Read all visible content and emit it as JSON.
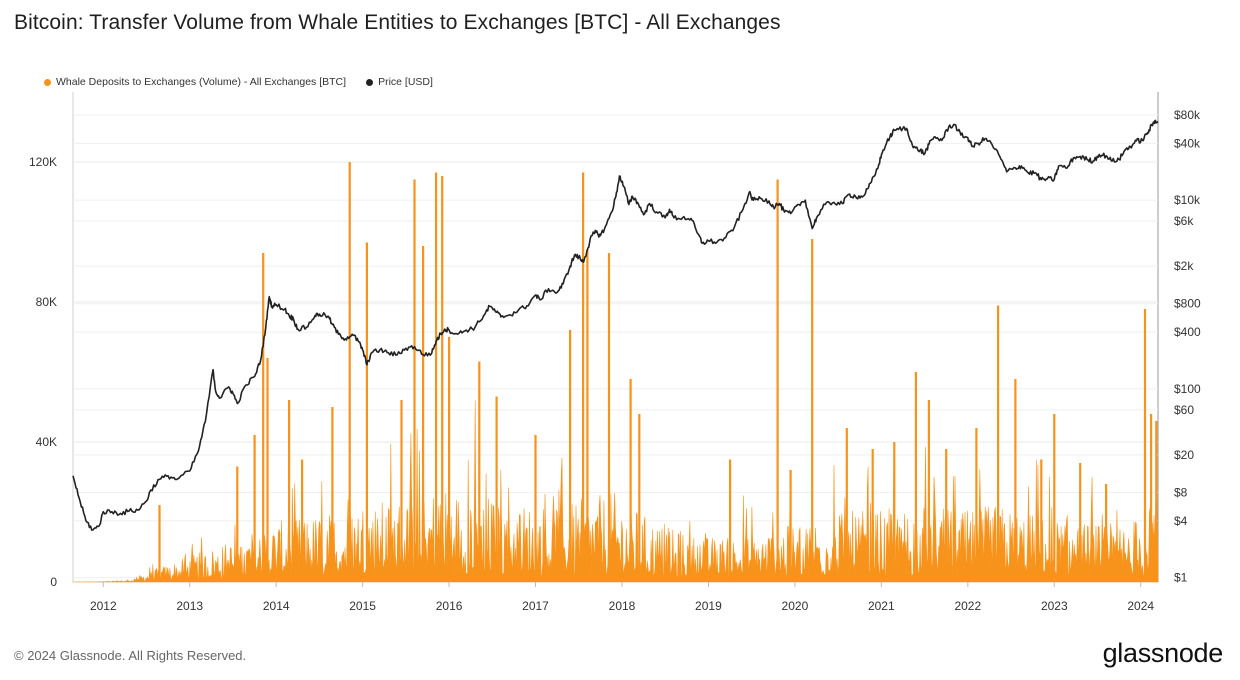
{
  "chart_data": {
    "type": "area",
    "title": "Bitcoin: Transfer Volume from Whale Entities to Exchanges [BTC] - All Exchanges",
    "legend": [
      {
        "name": "Whale Deposits to Exchanges (Volume) - All Exchanges [BTC]",
        "color": "#f7931a"
      },
      {
        "name": "Price [USD]",
        "color": "#222222"
      }
    ],
    "legend_position": "top-left",
    "grid": true,
    "x_range": [
      2011.65,
      2024.2
    ],
    "x_ticks": [
      {
        "value": 2012,
        "label": "2012"
      },
      {
        "value": 2013,
        "label": "2013"
      },
      {
        "value": 2014,
        "label": "2014"
      },
      {
        "value": 2015,
        "label": "2015"
      },
      {
        "value": 2016,
        "label": "2016"
      },
      {
        "value": 2017,
        "label": "2017"
      },
      {
        "value": 2018,
        "label": "2018"
      },
      {
        "value": 2019,
        "label": "2019"
      },
      {
        "value": 2020,
        "label": "2020"
      },
      {
        "value": 2021,
        "label": "2021"
      },
      {
        "value": 2022,
        "label": "2022"
      },
      {
        "value": 2023,
        "label": "2023"
      },
      {
        "value": 2024,
        "label": "2024"
      }
    ],
    "y_left": {
      "range": [
        0,
        140000
      ],
      "ticks": [
        {
          "value": 0,
          "label": "0"
        },
        {
          "value": 40000,
          "label": "40K"
        },
        {
          "value": 80000,
          "label": "80K"
        },
        {
          "value": 120000,
          "label": "120K"
        }
      ]
    },
    "y_right": {
      "scale": "log",
      "range": [
        0.9,
        140000
      ],
      "ticks": [
        {
          "value": 1,
          "label": "$1"
        },
        {
          "value": 4,
          "label": "$4"
        },
        {
          "value": 8,
          "label": "$8"
        },
        {
          "value": 20,
          "label": "$20"
        },
        {
          "value": 60,
          "label": "$60"
        },
        {
          "value": 100,
          "label": "$100"
        },
        {
          "value": 400,
          "label": "$400"
        },
        {
          "value": 800,
          "label": "$800"
        },
        {
          "value": 2000,
          "label": "$2k"
        },
        {
          "value": 6000,
          "label": "$6k"
        },
        {
          "value": 10000,
          "label": "$10k"
        },
        {
          "value": 40000,
          "label": "$40k"
        },
        {
          "value": 80000,
          "label": "$80k"
        }
      ]
    },
    "series": [
      {
        "name": "Whale Deposits to Exchanges (Volume) - All Exchanges [BTC]",
        "color": "#f7931a",
        "axis": "left",
        "baseline_points": [
          [
            2011.65,
            0
          ],
          [
            2012.0,
            60
          ],
          [
            2012.3,
            300
          ],
          [
            2012.5,
            1500
          ],
          [
            2012.8,
            3000
          ],
          [
            2013.0,
            4000
          ],
          [
            2013.3,
            5500
          ],
          [
            2013.6,
            7000
          ],
          [
            2013.9,
            9000
          ],
          [
            2014.2,
            10000
          ],
          [
            2014.5,
            10500
          ],
          [
            2014.8,
            11000
          ],
          [
            2015.0,
            13000
          ],
          [
            2015.3,
            12500
          ],
          [
            2015.6,
            14000
          ],
          [
            2015.9,
            15000
          ],
          [
            2016.2,
            14000
          ],
          [
            2016.5,
            13500
          ],
          [
            2016.8,
            12500
          ],
          [
            2017.0,
            12000
          ],
          [
            2017.3,
            12500
          ],
          [
            2017.6,
            13000
          ],
          [
            2017.9,
            14000
          ],
          [
            2018.0,
            13000
          ],
          [
            2018.3,
            10000
          ],
          [
            2018.6,
            8000
          ],
          [
            2018.9,
            7000
          ],
          [
            2019.2,
            7000
          ],
          [
            2019.5,
            7500
          ],
          [
            2019.8,
            8500
          ],
          [
            2020.0,
            9000
          ],
          [
            2020.3,
            10500
          ],
          [
            2020.6,
            11000
          ],
          [
            2020.9,
            11000
          ],
          [
            2021.2,
            11500
          ],
          [
            2021.5,
            12000
          ],
          [
            2021.8,
            11500
          ],
          [
            2022.0,
            11000
          ],
          [
            2022.3,
            12000
          ],
          [
            2022.6,
            11000
          ],
          [
            2022.9,
            10000
          ],
          [
            2023.2,
            9500
          ],
          [
            2023.5,
            9000
          ],
          [
            2023.8,
            9000
          ],
          [
            2024.0,
            10500
          ],
          [
            2024.2,
            13000
          ]
        ],
        "spikes": [
          [
            2012.65,
            22000
          ],
          [
            2013.55,
            33000
          ],
          [
            2013.75,
            42000
          ],
          [
            2013.85,
            94000
          ],
          [
            2013.9,
            64000
          ],
          [
            2014.15,
            52000
          ],
          [
            2014.3,
            35000
          ],
          [
            2014.65,
            50000
          ],
          [
            2014.85,
            120000
          ],
          [
            2015.05,
            97000
          ],
          [
            2015.45,
            52000
          ],
          [
            2015.6,
            115000
          ],
          [
            2015.7,
            96000
          ],
          [
            2015.85,
            117000
          ],
          [
            2015.92,
            116000
          ],
          [
            2016.0,
            70000
          ],
          [
            2016.35,
            63000
          ],
          [
            2016.55,
            53000
          ],
          [
            2017.0,
            42000
          ],
          [
            2017.4,
            72000
          ],
          [
            2017.55,
            117000
          ],
          [
            2017.6,
            95000
          ],
          [
            2017.85,
            94000
          ],
          [
            2018.1,
            58000
          ],
          [
            2018.2,
            48000
          ],
          [
            2019.25,
            35000
          ],
          [
            2019.8,
            115000
          ],
          [
            2019.95,
            32000
          ],
          [
            2020.2,
            98000
          ],
          [
            2020.6,
            44000
          ],
          [
            2020.9,
            38000
          ],
          [
            2021.15,
            40000
          ],
          [
            2021.4,
            60000
          ],
          [
            2021.55,
            52000
          ],
          [
            2021.75,
            38000
          ],
          [
            2022.1,
            44000
          ],
          [
            2022.35,
            79000
          ],
          [
            2022.55,
            58000
          ],
          [
            2022.85,
            35000
          ],
          [
            2023.0,
            48000
          ],
          [
            2023.3,
            34000
          ],
          [
            2023.6,
            28000
          ],
          [
            2024.05,
            78000
          ],
          [
            2024.12,
            48000
          ],
          [
            2024.18,
            46000
          ]
        ]
      },
      {
        "name": "Price [USD]",
        "color": "#222222",
        "axis": "right",
        "points": [
          [
            2011.65,
            12
          ],
          [
            2011.72,
            7
          ],
          [
            2011.8,
            4
          ],
          [
            2011.88,
            3.2
          ],
          [
            2011.95,
            3.5
          ],
          [
            2012.0,
            5
          ],
          [
            2012.1,
            5
          ],
          [
            2012.2,
            4.8
          ],
          [
            2012.3,
            5.1
          ],
          [
            2012.4,
            5.2
          ],
          [
            2012.5,
            6.5
          ],
          [
            2012.55,
            8.5
          ],
          [
            2012.65,
            11
          ],
          [
            2012.75,
            12
          ],
          [
            2012.85,
            11
          ],
          [
            2013.0,
            13.5
          ],
          [
            2013.1,
            22
          ],
          [
            2013.18,
            45
          ],
          [
            2013.27,
            160
          ],
          [
            2013.3,
            95
          ],
          [
            2013.35,
            80
          ],
          [
            2013.45,
            105
          ],
          [
            2013.5,
            90
          ],
          [
            2013.55,
            70
          ],
          [
            2013.65,
            110
          ],
          [
            2013.75,
            135
          ],
          [
            2013.82,
            200
          ],
          [
            2013.88,
            450
          ],
          [
            2013.92,
            950
          ],
          [
            2013.95,
            750
          ],
          [
            2014.0,
            780
          ],
          [
            2014.1,
            700
          ],
          [
            2014.15,
            600
          ],
          [
            2014.2,
            550
          ],
          [
            2014.25,
            430
          ],
          [
            2014.35,
            450
          ],
          [
            2014.45,
            600
          ],
          [
            2014.5,
            620
          ],
          [
            2014.6,
            590
          ],
          [
            2014.65,
            480
          ],
          [
            2014.72,
            380
          ],
          [
            2014.8,
            340
          ],
          [
            2014.88,
            380
          ],
          [
            2014.95,
            320
          ],
          [
            2015.0,
            260
          ],
          [
            2015.05,
            180
          ],
          [
            2015.1,
            240
          ],
          [
            2015.2,
            260
          ],
          [
            2015.3,
            240
          ],
          [
            2015.4,
            230
          ],
          [
            2015.5,
            270
          ],
          [
            2015.6,
            280
          ],
          [
            2015.7,
            230
          ],
          [
            2015.8,
            240
          ],
          [
            2015.85,
            320
          ],
          [
            2015.9,
            380
          ],
          [
            2015.95,
            430
          ],
          [
            2016.0,
            420
          ],
          [
            2016.1,
            380
          ],
          [
            2016.2,
            420
          ],
          [
            2016.3,
            450
          ],
          [
            2016.4,
            600
          ],
          [
            2016.47,
            750
          ],
          [
            2016.55,
            650
          ],
          [
            2016.6,
            580
          ],
          [
            2016.7,
            610
          ],
          [
            2016.8,
            680
          ],
          [
            2016.9,
            760
          ],
          [
            2017.0,
            990
          ],
          [
            2017.05,
            880
          ],
          [
            2017.15,
            1150
          ],
          [
            2017.25,
            1050
          ],
          [
            2017.32,
            1300
          ],
          [
            2017.4,
            2000
          ],
          [
            2017.45,
            2600
          ],
          [
            2017.5,
            2500
          ],
          [
            2017.55,
            2200
          ],
          [
            2017.6,
            3000
          ],
          [
            2017.65,
            4200
          ],
          [
            2017.7,
            4600
          ],
          [
            2017.75,
            4200
          ],
          [
            2017.82,
            5500
          ],
          [
            2017.88,
            7500
          ],
          [
            2017.93,
            11000
          ],
          [
            2017.97,
            18000
          ],
          [
            2018.02,
            14000
          ],
          [
            2018.08,
            9000
          ],
          [
            2018.12,
            11000
          ],
          [
            2018.18,
            9500
          ],
          [
            2018.25,
            7000
          ],
          [
            2018.32,
            9200
          ],
          [
            2018.4,
            7500
          ],
          [
            2018.5,
            6500
          ],
          [
            2018.55,
            8000
          ],
          [
            2018.6,
            6500
          ],
          [
            2018.7,
            6500
          ],
          [
            2018.8,
            6400
          ],
          [
            2018.87,
            4500
          ],
          [
            2018.93,
            3500
          ],
          [
            2019.0,
            3700
          ],
          [
            2019.1,
            3600
          ],
          [
            2019.2,
            4000
          ],
          [
            2019.3,
            5200
          ],
          [
            2019.4,
            8000
          ],
          [
            2019.47,
            12000
          ],
          [
            2019.52,
            10000
          ],
          [
            2019.6,
            10500
          ],
          [
            2019.7,
            9800
          ],
          [
            2019.75,
            8500
          ],
          [
            2019.82,
            9200
          ],
          [
            2019.88,
            7500
          ],
          [
            2019.95,
            7200
          ],
          [
            2020.05,
            9000
          ],
          [
            2020.12,
            10000
          ],
          [
            2020.2,
            5000
          ],
          [
            2020.25,
            6500
          ],
          [
            2020.35,
            9000
          ],
          [
            2020.45,
            9500
          ],
          [
            2020.55,
            9200
          ],
          [
            2020.62,
            11500
          ],
          [
            2020.7,
            11000
          ],
          [
            2020.78,
            10800
          ],
          [
            2020.85,
            13500
          ],
          [
            2020.92,
            18000
          ],
          [
            2020.97,
            24000
          ],
          [
            2021.02,
            34000
          ],
          [
            2021.1,
            47000
          ],
          [
            2021.15,
            55000
          ],
          [
            2021.25,
            58000
          ],
          [
            2021.3,
            56000
          ],
          [
            2021.37,
            36000
          ],
          [
            2021.45,
            34000
          ],
          [
            2021.5,
            31000
          ],
          [
            2021.55,
            39000
          ],
          [
            2021.62,
            47000
          ],
          [
            2021.7,
            43000
          ],
          [
            2021.78,
            60000
          ],
          [
            2021.85,
            63000
          ],
          [
            2021.92,
            49000
          ],
          [
            2022.0,
            46000
          ],
          [
            2022.05,
            37000
          ],
          [
            2022.12,
            40000
          ],
          [
            2022.2,
            45000
          ],
          [
            2022.28,
            39000
          ],
          [
            2022.37,
            29000
          ],
          [
            2022.45,
            20000
          ],
          [
            2022.55,
            22000
          ],
          [
            2022.62,
            23000
          ],
          [
            2022.7,
            19500
          ],
          [
            2022.78,
            19500
          ],
          [
            2022.85,
            16500
          ],
          [
            2022.92,
            16800
          ],
          [
            2023.0,
            16600
          ],
          [
            2023.05,
            23000
          ],
          [
            2023.15,
            22000
          ],
          [
            2023.22,
            28000
          ],
          [
            2023.3,
            29000
          ],
          [
            2023.38,
            27000
          ],
          [
            2023.45,
            26000
          ],
          [
            2023.52,
            30500
          ],
          [
            2023.6,
            29500
          ],
          [
            2023.67,
            26000
          ],
          [
            2023.75,
            27000
          ],
          [
            2023.82,
            34000
          ],
          [
            2023.88,
            37000
          ],
          [
            2023.95,
            42500
          ],
          [
            2024.02,
            43000
          ],
          [
            2024.08,
            52000
          ],
          [
            2024.13,
            62000
          ],
          [
            2024.17,
            70000
          ],
          [
            2024.2,
            68000
          ]
        ]
      }
    ]
  },
  "footer": {
    "copyright": "© 2024 Glassnode. All Rights Reserved.",
    "logo_text": "glassnode"
  }
}
